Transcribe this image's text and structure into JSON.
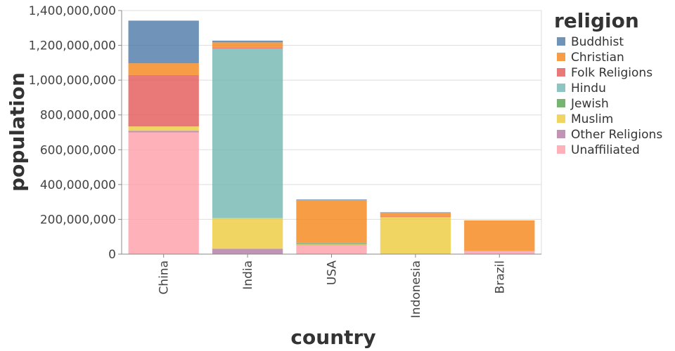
{
  "chart_data": {
    "type": "bar",
    "stacked": true,
    "title": "",
    "xlabel": "country",
    "ylabel": "population",
    "categories": [
      "China",
      "India",
      "USA",
      "Indonesia",
      "Brazil"
    ],
    "ylim": [
      0,
      1400000000
    ],
    "yticks": [
      0,
      200000000,
      400000000,
      600000000,
      800000000,
      1000000000,
      1200000000,
      1400000000
    ],
    "ytick_labels": [
      "0",
      "200,000,000",
      "400,000,000",
      "600,000,000",
      "800,000,000",
      "1,000,000,000",
      "1,200,000,000",
      "1,400,000,000"
    ],
    "grid": true,
    "legend": {
      "title": "religion",
      "position": "right"
    },
    "series": [
      {
        "name": "Unaffiliated",
        "color": "#ff9da7",
        "values": [
          700000000,
          1000000,
          51000000,
          1000000,
          15000000
        ]
      },
      {
        "name": "Other Religions",
        "color": "#b279a2",
        "values": [
          9000000,
          30000000,
          2000000,
          1000000,
          3000000
        ]
      },
      {
        "name": "Muslim",
        "color": "#eeca3b",
        "values": [
          25000000,
          176000000,
          3000000,
          209000000,
          1000000
        ]
      },
      {
        "name": "Jewish",
        "color": "#54a24b",
        "values": [
          0,
          0,
          6000000,
          0,
          0
        ]
      },
      {
        "name": "Hindu",
        "color": "#72b7b2",
        "values": [
          0,
          974000000,
          2000000,
          4000000,
          0
        ]
      },
      {
        "name": "Folk Religions",
        "color": "#e45756",
        "values": [
          295000000,
          5000000,
          0,
          1000000,
          0
        ]
      },
      {
        "name": "Christian",
        "color": "#f58518",
        "values": [
          68000000,
          31000000,
          246000000,
          23000000,
          175000000
        ]
      },
      {
        "name": "Buddhist",
        "color": "#4c78a8",
        "values": [
          245000000,
          10000000,
          4000000,
          2000000,
          0
        ]
      }
    ]
  }
}
